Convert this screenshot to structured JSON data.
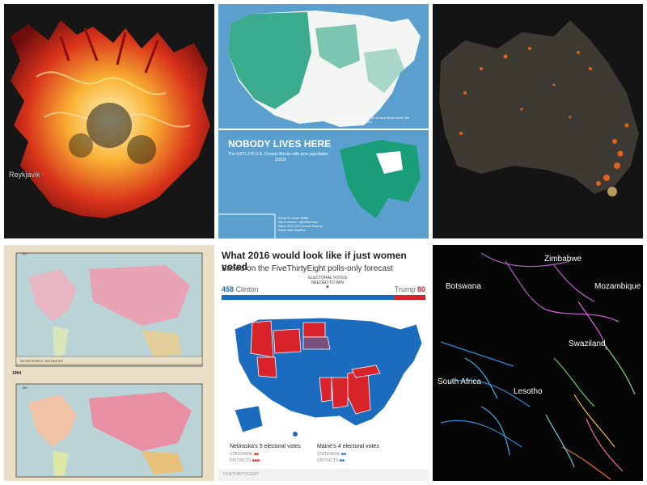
{
  "panels": {
    "iceland": {
      "label": "Reykjavik"
    },
    "nobody": {
      "title": "NOBODY LIVES HERE",
      "subtitle": "The 4,871,270 U.S. Census Blocks with zero population",
      "subtitle2": "(2010)",
      "note": "Every green area represents a Census Block where the reported population was zero.",
      "credits": [
        "Zoom for more detail",
        "Nik Freeman / @ndfreeman",
        "Data: 2010 US Census Bureau",
        "Made with MapBox"
      ]
    },
    "australia": {},
    "vintage": {
      "top_label": "131",
      "caption": "INCHSTROM D. DISTANCES",
      "year": "1904",
      "bottom_label": "150"
    },
    "women_voted": {
      "title": "What 2016 would look like if just women voted",
      "subtitle": "Based on the FiveThirtyEight polls-only forecast",
      "clinton_votes": "458",
      "clinton_label": "Clinton",
      "trump_label": "Trump",
      "trump_votes": "80",
      "needed_line1": "ELECTORAL VOTES",
      "needed_line2": "NEEDED TO WIN",
      "nebraska_title": "Nebraska's 5 electoral votes",
      "maine_title": "Maine's 4 electoral votes",
      "statewide": "STATEWIDE",
      "districts": "DISTRICTS",
      "brand": "FIVETHIRTYEIGHT",
      "colors": {
        "clinton": "#1b6cbf",
        "trump": "#d8232a",
        "split": "#7a4f7c"
      }
    },
    "rivers": {
      "labels": [
        "Zimbabwe",
        "Botswana",
        "Mozambique",
        "Swaziland",
        "South Africa",
        "Lesotho"
      ]
    }
  }
}
